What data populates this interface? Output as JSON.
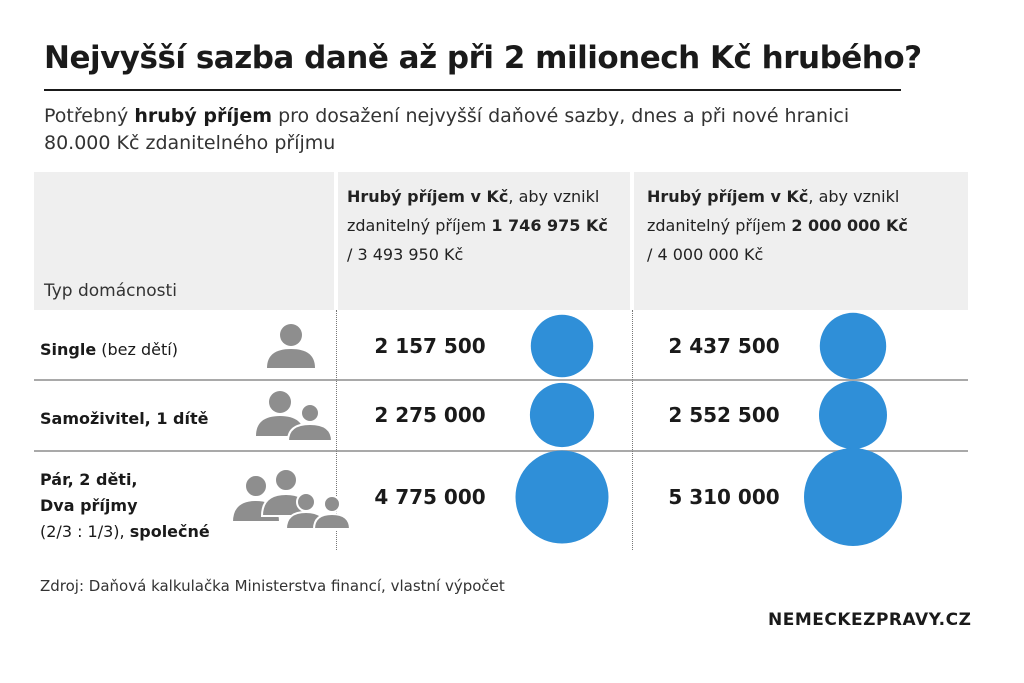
{
  "title": "Nejvyšší sazba daně až při 2 milionech Kč hrubého?",
  "subtitle": {
    "part1": "Potřebný ",
    "bold": "hrubý příjem",
    "part2": " pro dosažení nejvyšší daňové sazby, dnes a při nové hranici",
    "line2": "80.000 Kč zdanitelného příjmu"
  },
  "header": {
    "type_label": "Typ domácnosti",
    "col1": {
      "bold": "Hrubý příjem v Kč",
      "text1": ", aby vznikl",
      "text2": "zdanitelný příjem ",
      "bold2": "1 746 975 Kč",
      "text3": "/ 3 493 950 Kč"
    },
    "col2": {
      "bold": "Hrubý příjem v Kč",
      "text1": ", aby vznikl",
      "text2": "zdanitelný příjem ",
      "bold2": "2 000 000 Kč",
      "text3": "/ 4 000 000 Kč"
    }
  },
  "rows": [
    {
      "label_bold": "Single",
      "label_rest": " (bez dětí)",
      "icon": "single-person-icon"
    },
    {
      "label_bold": "Samoživitel, 1 dítě",
      "icon": "parent-child-icon"
    },
    {
      "line1": "Pár, 2 děti,",
      "line2": "Dva příjmy",
      "line3_rest": "(2/3 : 1/3), ",
      "line3_bold": "společné",
      "icon": "family-icon"
    }
  ],
  "chart_data": {
    "type": "bubble-table",
    "categories": [
      "Single (bez dětí)",
      "Samoživitel, 1 dítě",
      "Pár, 2 děti, Dva příjmy (2/3 : 1/3), společné"
    ],
    "series": [
      {
        "labels": [
          "2 157 500",
          "2 275 000",
          "4 775 000"
        ],
        "values": [
          2157500,
          2275000,
          4775000
        ]
      },
      {
        "labels": [
          "2 437 500",
          "2 552 500",
          "5 310 000"
        ],
        "values": [
          2437500,
          2552500,
          5310000
        ]
      }
    ],
    "bubble_color": "#2f8fd8"
  },
  "source": "Zdroj: Daňová kalkulačka Ministerstva financí, vlastní výpočet",
  "brand": "NEMECKEZPRAVY.CZ"
}
